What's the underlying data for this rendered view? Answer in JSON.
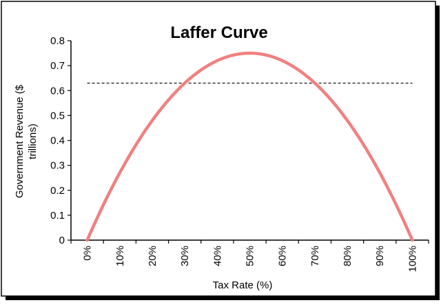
{
  "chart_data": {
    "type": "line",
    "title": "Laffer Curve",
    "xlabel": "Tax Rate (%)",
    "ylabel_line1": "Government Revenue ($",
    "ylabel_line2": "trillions)",
    "x_tick_labels": [
      "0%",
      "10%",
      "20%",
      "30%",
      "40%",
      "50%",
      "60%",
      "70%",
      "80%",
      "90%",
      "100%"
    ],
    "y_tick_labels": [
      "0",
      "0.1",
      "0.2",
      "0.3",
      "0.4",
      "0.5",
      "0.6",
      "0.7",
      "0.8"
    ],
    "xlim": [
      0,
      100
    ],
    "ylim": [
      0,
      0.8
    ],
    "grid": false,
    "legend": "none",
    "series": [
      {
        "x": [
          0,
          10,
          20,
          30,
          40,
          50,
          60,
          70,
          80,
          90,
          100
        ],
        "values": [
          0,
          0.27,
          0.48,
          0.63,
          0.72,
          0.75,
          0.72,
          0.63,
          0.48,
          0.27,
          0
        ],
        "color": "#f08080"
      }
    ],
    "reference_line": {
      "y": 0.63,
      "x_start": 0,
      "x_end": 100,
      "style": "dashed",
      "color": "#000000"
    },
    "colors": {
      "curve": "#f08080",
      "axis": "#000000",
      "frame_shadow": "#000000"
    }
  }
}
